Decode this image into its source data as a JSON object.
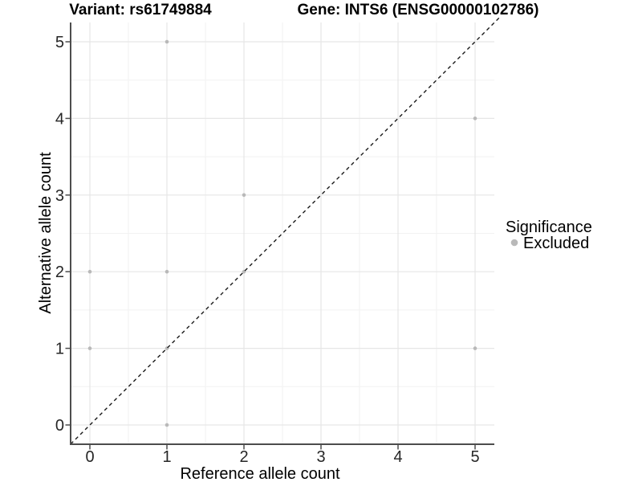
{
  "chart_data": {
    "type": "scatter",
    "titles": {
      "left": "Variant: rs61749884",
      "right": "Gene: INTS6 (ENSG00000102786)"
    },
    "xlabel": "Reference allele count",
    "ylabel": "Alternative allele count",
    "xticks": [
      0,
      1,
      2,
      3,
      4,
      5
    ],
    "yticks": [
      0,
      1,
      2,
      3,
      4,
      5
    ],
    "xlim": [
      -0.25,
      5.25
    ],
    "ylim": [
      -0.25,
      5.25
    ],
    "grid": {
      "major": true,
      "minor": true
    },
    "series": [
      {
        "name": "Excluded",
        "color": "#b9b9b9",
        "points": [
          {
            "x": 0,
            "y": 1
          },
          {
            "x": 0,
            "y": 2
          },
          {
            "x": 1,
            "y": 0
          },
          {
            "x": 1,
            "y": 1
          },
          {
            "x": 1,
            "y": 2
          },
          {
            "x": 1,
            "y": 5
          },
          {
            "x": 2,
            "y": 2
          },
          {
            "x": 2,
            "y": 3
          },
          {
            "x": 5,
            "y": 1
          },
          {
            "x": 5,
            "y": 4
          }
        ]
      }
    ],
    "reference_line": {
      "type": "identity",
      "slope": 1,
      "intercept": 0,
      "style": "dashed",
      "color": "#1a1a1a"
    },
    "legend": {
      "title": "Significance",
      "position": "right",
      "entries": [
        {
          "label": "Excluded",
          "color": "#b9b9b9"
        }
      ]
    }
  },
  "colors": {
    "background": "#ffffff",
    "grid_major": "#e6e6e6",
    "grid_minor": "#f2f2f2",
    "axis_line": "#4d4d4d",
    "tick_mark": "#4d4d4d",
    "tick_text": "#262626",
    "title_text": "#000000"
  }
}
